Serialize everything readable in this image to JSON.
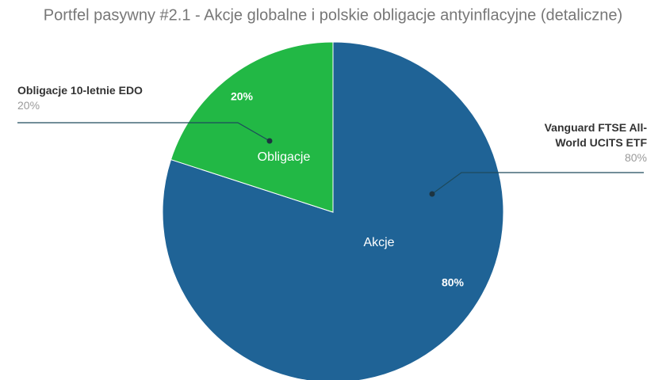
{
  "chart_data": {
    "type": "pie",
    "title": "Portfel pasywny #2.1 - Akcje globalne i polskie obligacje antyinflacyjne (detaliczne)",
    "categories": [
      "Akcje",
      "Obligacje"
    ],
    "values": [
      80,
      20
    ],
    "value_labels": [
      "80%",
      "20%"
    ],
    "colors": [
      "#1f6396",
      "#22b845"
    ],
    "callouts": [
      "Vanguard FTSE All-World UCITS ETF",
      "Obligacje 10-letnie EDO"
    ]
  }
}
